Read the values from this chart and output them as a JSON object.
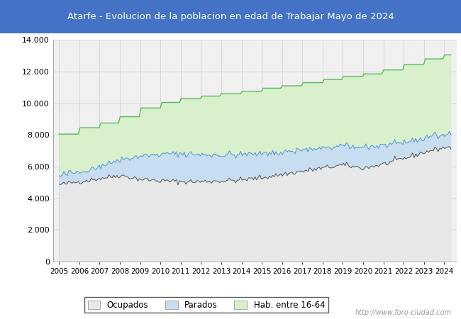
{
  "title": "Atarfe - Evolucion de la poblacion en edad de Trabajar Mayo de 2024",
  "title_bg": "#4472c4",
  "title_color": "white",
  "ylim": [
    0,
    14000
  ],
  "yticks": [
    0,
    2000,
    4000,
    6000,
    8000,
    10000,
    12000,
    14000
  ],
  "ytick_labels": [
    "0",
    "2.000",
    "4.000",
    "6.000",
    "8.000",
    "10.000",
    "12.000",
    "14.000"
  ],
  "year_labels": [
    2005,
    2006,
    2007,
    2008,
    2009,
    2010,
    2011,
    2012,
    2013,
    2014,
    2015,
    2016,
    2017,
    2018,
    2019,
    2020,
    2021,
    2022,
    2023,
    2024
  ],
  "hab_annual": [
    8050,
    8450,
    8750,
    9150,
    9700,
    10050,
    10300,
    10450,
    10600,
    10750,
    10950,
    11100,
    11300,
    11500,
    11700,
    11850,
    12100,
    12450,
    12800,
    13050
  ],
  "ocupados_annual": [
    4850,
    5050,
    5250,
    5450,
    5200,
    5100,
    5050,
    5050,
    5100,
    5150,
    5300,
    5500,
    5700,
    5900,
    6100,
    5900,
    6150,
    6500,
    6900,
    7200
  ],
  "parados_annual": [
    550,
    650,
    750,
    1000,
    1450,
    1650,
    1750,
    1700,
    1650,
    1600,
    1500,
    1400,
    1350,
    1250,
    1150,
    1350,
    1200,
    1000,
    900,
    850
  ],
  "ocupados_color": "#e8e8e8",
  "parados_color": "#c8ddf0",
  "hab_color": "#d8f0cc",
  "ocupados_line_color": "#555555",
  "parados_line_color": "#5b9bd5",
  "hab_line_color": "#5cb85c",
  "background_color": "#f0f0f0",
  "watermark": "http://www.foro-ciudad.com",
  "legend_labels": [
    "Ocupados",
    "Parados",
    "Hab. entre 16-64"
  ]
}
